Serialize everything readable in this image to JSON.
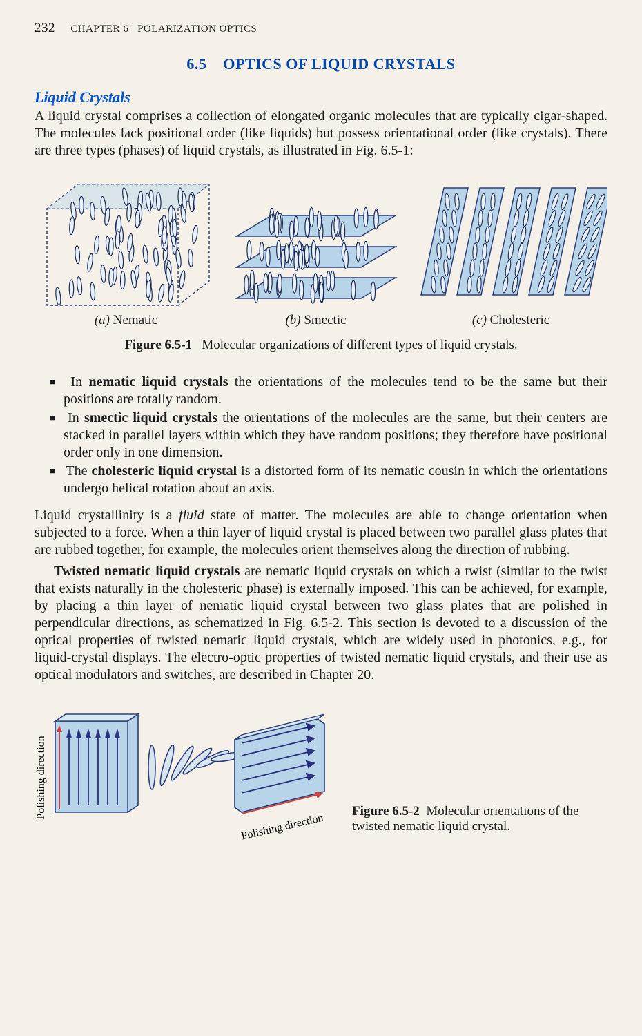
{
  "header": {
    "page_number": "232",
    "chapter_label": "CHAPTER 6",
    "chapter_title": "POLARIZATION OPTICS"
  },
  "section": {
    "number": "6.5",
    "title": "OPTICS OF LIQUID CRYSTALS"
  },
  "subheading": "Liquid Crystals",
  "intro_para": "A liquid crystal comprises a collection of elongated organic molecules that are typically cigar-shaped. The molecules lack positional order (like liquids) but possess orientational order (like crystals). There are three types (phases) of liquid crystals, as illustrated in Fig. 6.5-1:",
  "figure1": {
    "subcaptions": [
      {
        "label": "(a)",
        "name": "Nematic"
      },
      {
        "label": "(b)",
        "name": "Smectic"
      },
      {
        "label": "(c)",
        "name": "Cholesteric"
      }
    ],
    "caption_label": "Figure 6.5-1",
    "caption_text": "Molecular organizations of different types of liquid crystals.",
    "colors": {
      "box_fill": "#b8d4e8",
      "box_stroke": "#2a3f7a",
      "molecule_stroke": "#1a2a5a",
      "molecule_fill": "#e8f0f8"
    }
  },
  "bullets": [
    {
      "bold": "nematic liquid crystals",
      "pre": "In ",
      "post": " the orientations of the molecules tend to be the same but their positions are totally random."
    },
    {
      "bold": "smectic liquid crystals",
      "pre": "In ",
      "post": " the orientations of the molecules are the same, but their centers are stacked in parallel layers within which they have random positions; they therefore have positional order only in one dimension."
    },
    {
      "bold": "cholesteric liquid crystal",
      "pre": "The ",
      "post": " is a distorted form of its nematic cousin in which the orientations undergo helical rotation about an axis."
    }
  ],
  "para2": {
    "pre": "Liquid crystallinity is a ",
    "italic": "fluid",
    "post": " state of matter. The molecules are able to change orientation when subjected to a force. When a thin layer of liquid crystal is placed between two parallel glass plates that are rubbed together, for example, the molecules orient themselves along the direction of rubbing."
  },
  "para3": {
    "bold": "Twisted nematic liquid crystals",
    "post": " are nematic liquid crystals on which a twist (similar to the twist that exists naturally in the cholesteric phase) is externally imposed. This can be achieved, for example, by placing a thin layer of nematic liquid crystal between two glass plates that are polished in perpendicular directions, as schematized in Fig. 6.5-2. This section is devoted to a discussion of the optical properties of twisted nematic liquid crystals, which are widely used in photonics, e.g., for liquid-crystal displays. The electro-optic properties of twisted nematic liquid crystals, and their use as optical modulators and switches, are described in Chapter 20."
  },
  "figure2": {
    "y_axis_label": "Polishing direction",
    "x_axis_label": "Polishing direction",
    "caption_label": "Figure 6.5-2",
    "caption_text": "Molecular orientations of the twisted nematic liquid crystal.",
    "colors": {
      "plate_fill": "#b8d4e8",
      "plate_stroke": "#2a3f7a",
      "arrow_stroke": "#2a3080",
      "arrow_red": "#d04040",
      "molecule_fill": "#d8e4f0"
    }
  }
}
